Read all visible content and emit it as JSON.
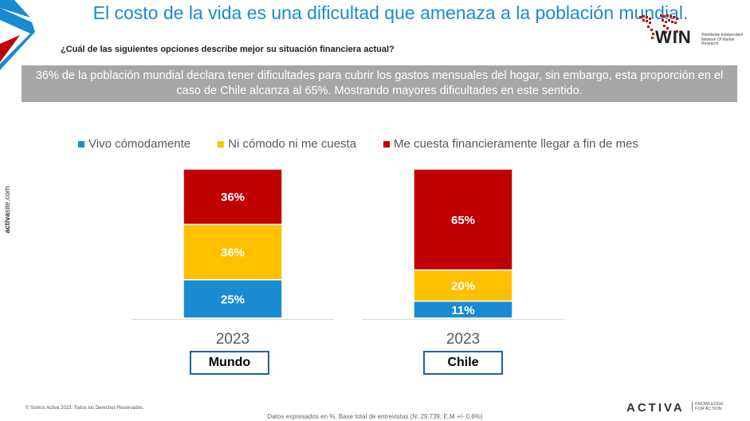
{
  "header": {
    "title": "El costo de la vida es una dificultad que amenaza a la población mundial.",
    "question": "¿Cuál de las siguientes opciones describe mejor su situación financiera actual?"
  },
  "banner": {
    "text": "36% de la población mundial declara tener dificultades para cubrir los gastos mensuales del hogar, sin embargo, esta proporción en el caso de Chile alcanza al 65%. Mostrando mayores dificultades en este sentido."
  },
  "logo": {
    "win_text": "WIN",
    "win_subtext": "Worldwide Independent Network Of Market Research"
  },
  "sidebar": {
    "brand_bold": "activa",
    "brand_rest": "site.com"
  },
  "chart_data": {
    "type": "bar",
    "stacked": true,
    "percent_values": true,
    "legend_position": "top",
    "colors": [
      "#1a8bd0",
      "#ffc000",
      "#c00000"
    ],
    "series": [
      {
        "name": "Vivo cómodamente"
      },
      {
        "name": "Ni cómodo ni me cuesta"
      },
      {
        "name": "Me cuesta financieramente llegar a fin de mes"
      }
    ],
    "groups": [
      {
        "region": "Mundo",
        "year": "2023",
        "values": [
          25,
          36,
          36
        ]
      },
      {
        "region": "Chile",
        "year": "2023",
        "values": [
          11,
          20,
          65
        ]
      }
    ]
  },
  "footer": {
    "copyright": "© Somos Activa 2023. Todos los Derechos Reservados.",
    "note": "Datos expresados en %. Base total de entrevistas (N: 29.739; E.M +/- 0,6%)",
    "brand": "ACTIVA",
    "tagline_1": "KNOWLEDGE",
    "tagline_2": "FOR ACTION"
  }
}
